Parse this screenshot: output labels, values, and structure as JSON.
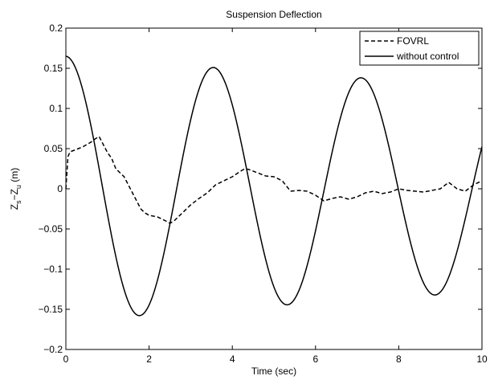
{
  "chart_data": {
    "type": "line",
    "title": "Suspension Deflection",
    "xlabel": "Time (sec)",
    "ylabel": {
      "base_s": "Z",
      "sub_s": "s",
      "dash": "−",
      "base_u": "Z",
      "sub_u": "u",
      "unit": " (m)"
    },
    "xlim": [
      0,
      10
    ],
    "ylim": [
      -0.2,
      0.2
    ],
    "xticks": [
      0,
      2,
      4,
      6,
      8,
      10
    ],
    "yticks": [
      -0.2,
      -0.15,
      -0.1,
      -0.05,
      0,
      0.05,
      0.1,
      0.15,
      0.2
    ],
    "ytick_labels": [
      "−0.2",
      "−0.15",
      "−0.1",
      "−0.05",
      "0",
      "0.05",
      "0.1",
      "0.15",
      "0.2"
    ],
    "grid": false,
    "legend_position": "top-right",
    "series": [
      {
        "name": "FOVRL",
        "style": "dashed",
        "x": [
          0,
          0.05,
          0.1,
          0.2,
          0.3,
          0.4,
          0.5,
          0.6,
          0.7,
          0.8,
          0.9,
          1.0,
          1.1,
          1.2,
          1.3,
          1.4,
          1.5,
          1.6,
          1.7,
          1.8,
          1.9,
          2.0,
          2.2,
          2.4,
          2.5,
          2.6,
          2.8,
          3.0,
          3.2,
          3.4,
          3.6,
          3.8,
          4.0,
          4.2,
          4.3,
          4.4,
          4.6,
          4.8,
          5.0,
          5.2,
          5.4,
          5.6,
          5.8,
          6.0,
          6.2,
          6.4,
          6.6,
          6.8,
          7.0,
          7.2,
          7.4,
          7.6,
          7.8,
          8.0,
          8.2,
          8.4,
          8.6,
          8.8,
          9.0,
          9.2,
          9.4,
          9.6,
          9.8,
          10.0
        ],
        "values": [
          0.0,
          0.04,
          0.046,
          0.048,
          0.05,
          0.052,
          0.055,
          0.058,
          0.062,
          0.065,
          0.055,
          0.045,
          0.038,
          0.025,
          0.02,
          0.015,
          0.005,
          -0.005,
          -0.015,
          -0.025,
          -0.03,
          -0.033,
          -0.035,
          -0.04,
          -0.043,
          -0.04,
          -0.03,
          -0.02,
          -0.012,
          -0.005,
          0.005,
          0.01,
          0.015,
          0.022,
          0.025,
          0.024,
          0.02,
          0.016,
          0.015,
          0.01,
          -0.003,
          -0.002,
          -0.003,
          -0.008,
          -0.015,
          -0.012,
          -0.01,
          -0.013,
          -0.01,
          -0.005,
          -0.003,
          -0.006,
          -0.004,
          0.0,
          -0.002,
          -0.003,
          -0.004,
          -0.002,
          0.0,
          0.008,
          0.0,
          -0.003,
          0.005,
          0.01
        ]
      },
      {
        "name": "without control",
        "style": "solid",
        "generator": {
          "amplitude": 0.165,
          "period": 3.55,
          "decay": 0.025
        }
      }
    ]
  }
}
